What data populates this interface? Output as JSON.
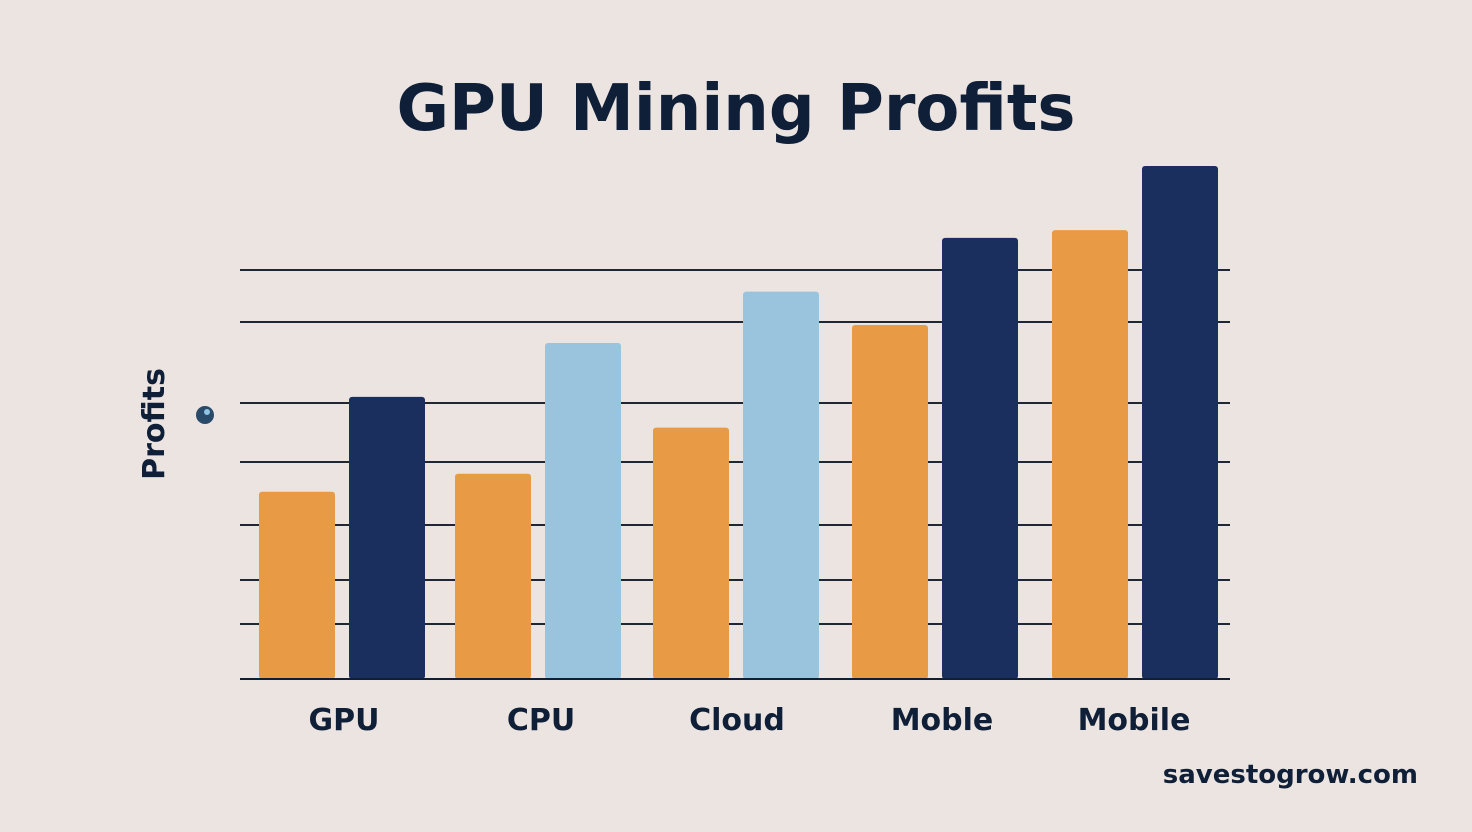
{
  "chart_data": {
    "type": "bar",
    "title": "GPU Mining Profits",
    "xlabel": "",
    "ylabel": "Profits",
    "categories": [
      "GPU",
      "CPU",
      "Cloud",
      "Moble",
      "Mobile"
    ],
    "ylim": [
      0,
      100
    ],
    "grid": true,
    "legend": "none",
    "series": [
      {
        "values": [
          36.5,
          40,
          49,
          69,
          87.5
        ],
        "colors": [
          "#e89a44",
          "#e89a44",
          "#e89a44",
          "#e89a44",
          "#e89a44"
        ]
      },
      {
        "values": [
          55,
          65.5,
          75.5,
          86,
          100
        ],
        "colors": [
          "#1b2f5e",
          "#9ac3de",
          "#9ac3de",
          "#1b2f5e",
          "#1b2f5e"
        ]
      }
    ]
  },
  "watermark": "savestogrow.com",
  "colors": {
    "orange": "#e89a44",
    "navy": "#1b2f5e",
    "light_blue": "#9ac3de",
    "text": "#0f1f38",
    "background": "#ebe4e0"
  }
}
